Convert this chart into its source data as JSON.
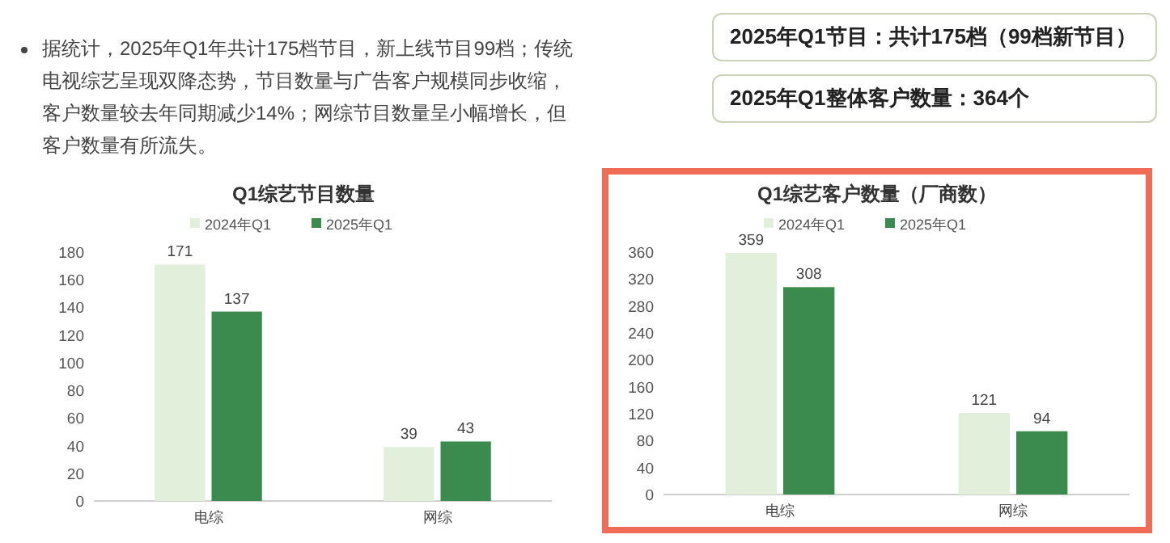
{
  "chart_data": [
    {
      "type": "other",
      "annotations": [
        "据统计，2025年Q1年共计175档节目，新上线节目99档；传统电视综艺呈现双降态势，节目数量与广告客户规模同步收缩，客户数量较去年同期减少14%；网综节目数量呈小幅增长，但客户数量有所流失。"
      ]
    },
    {
      "type": "other",
      "annotations": [
        "2025年Q1节目：共计175档（99档新节目）",
        "2025年Q1整体客户数量：364个"
      ]
    },
    {
      "type": "bar",
      "title": "Q1综艺节目数量",
      "categories": [
        "电综",
        "网综"
      ],
      "series": [
        {
          "name": "2024年Q1",
          "color": "#e2efda",
          "values": [
            171,
            39
          ]
        },
        {
          "name": "2025年Q1",
          "color": "#3b8a4e",
          "values": [
            137,
            43
          ]
        }
      ],
      "ylim": [
        0,
        180
      ],
      "yticks": [
        0,
        20,
        40,
        60,
        80,
        100,
        120,
        140,
        160,
        180
      ],
      "legend": "top",
      "data_labels": true
    },
    {
      "type": "bar",
      "title": "Q1综艺客户数量（厂商数）",
      "categories": [
        "电综",
        "网综"
      ],
      "series": [
        {
          "name": "2024年Q1",
          "color": "#e2efda",
          "values": [
            359,
            121
          ]
        },
        {
          "name": "2025年Q1",
          "color": "#3b8a4e",
          "values": [
            308,
            94
          ]
        }
      ],
      "ylim": [
        0,
        360
      ],
      "yticks": [
        0,
        40,
        80,
        120,
        160,
        200,
        240,
        280,
        320,
        360
      ],
      "legend": "top",
      "data_labels": true
    }
  ]
}
